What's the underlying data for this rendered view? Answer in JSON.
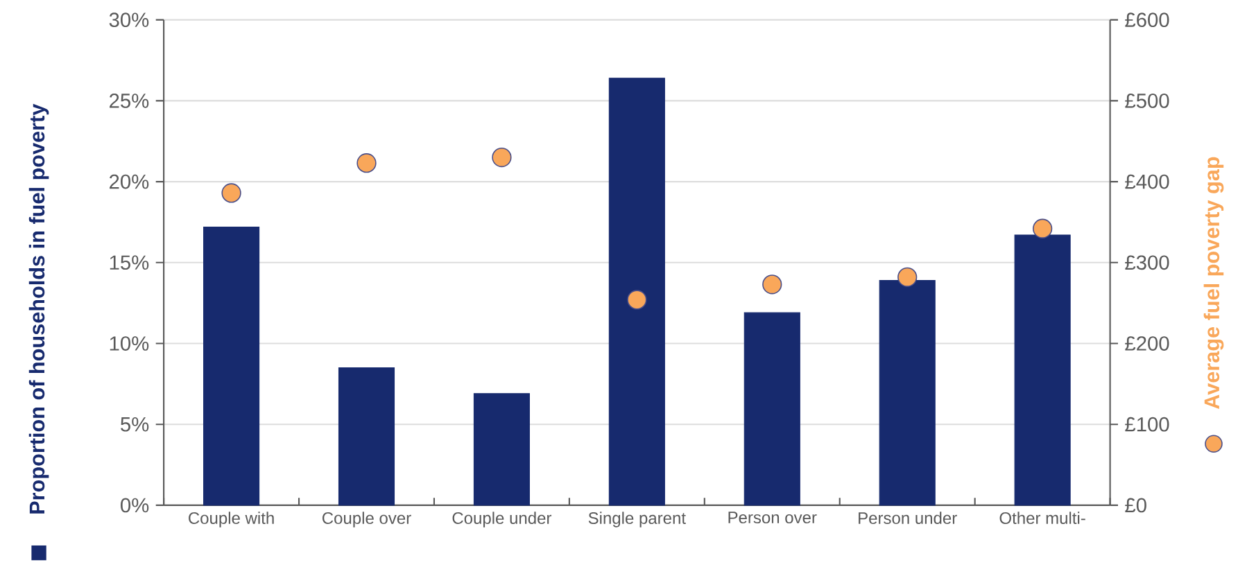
{
  "chart_data": {
    "type": "bar",
    "categories": [
      "Couple with",
      "Couple over",
      "Couple under",
      "Single parent",
      "Person over",
      "Person under",
      "Other multi-"
    ],
    "series": [
      {
        "name": "Proportion of households in fuel poverty",
        "color": "#172a6e",
        "values": [
          17.2,
          8.5,
          6.9,
          26.4,
          11.9,
          13.9,
          16.7
        ]
      },
      {
        "name": "Average fuel poverty gap",
        "type": "scatter",
        "axis": "y2",
        "marker": "circle",
        "color": "#f9a75a",
        "values": [
          386,
          423,
          430,
          254,
          273,
          282,
          342
        ]
      }
    ],
    "ylim": [
      0,
      30
    ],
    "yticks": [
      {
        "value": 0,
        "label": "0%"
      },
      {
        "value": 5,
        "label": "5%"
      },
      {
        "value": 10,
        "label": "10%"
      },
      {
        "value": 15,
        "label": "15%"
      },
      {
        "value": 20,
        "label": "20%"
      },
      {
        "value": 25,
        "label": "25%"
      },
      {
        "value": 30,
        "label": "30%"
      }
    ],
    "y2lim": [
      0,
      600
    ],
    "y2ticks": [
      {
        "value": 0,
        "label": "£0"
      },
      {
        "value": 100,
        "label": "£100"
      },
      {
        "value": 200,
        "label": "£200"
      },
      {
        "value": 300,
        "label": "£300"
      },
      {
        "value": 400,
        "label": "£400"
      },
      {
        "value": 500,
        "label": "£500"
      },
      {
        "value": 600,
        "label": "£600"
      }
    ],
    "grid": "y"
  }
}
